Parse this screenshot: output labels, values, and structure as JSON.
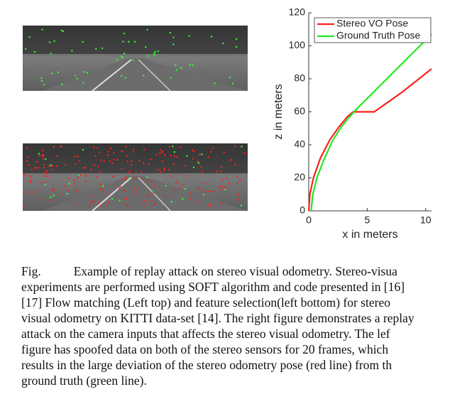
{
  "chart_data": {
    "type": "line",
    "xlabel": "x in meters",
    "ylabel": "z in meters",
    "xlim": [
      0,
      10.5
    ],
    "ylim": [
      0,
      120
    ],
    "xticks": [
      0,
      5,
      10
    ],
    "yticks": [
      0,
      20,
      40,
      60,
      80,
      100,
      120
    ],
    "legend": "top-left",
    "series": [
      {
        "name": "Stereo VO Pose",
        "color": "#ff1f1f",
        "x": [
          0,
          0.1,
          0.4,
          1,
          1.8,
          2.6,
          3.3,
          3.8,
          5.6,
          8,
          10.5
        ],
        "values": [
          0,
          10,
          20,
          32,
          43,
          51,
          57,
          60,
          60,
          72,
          86
        ]
      },
      {
        "name": "Ground Truth Pose",
        "color": "#22e622",
        "x": [
          0.2,
          0.35,
          0.7,
          1.3,
          2.0,
          2.8,
          3.5,
          4.0,
          10.5
        ],
        "values": [
          0,
          10,
          20,
          31,
          42,
          51,
          57,
          61,
          107
        ]
      }
    ]
  },
  "caption": {
    "label": "Fig.",
    "lines": [
      "Example of replay attack on stereo visual odometry. Stereo-visua",
      "experiments are performed using SOFT algorithm and code presented in [16]",
      "[17] Flow matching (Left top) and feature selection(left bottom) for stereo",
      "visual odometry on KITTI data-set [14]. The right figure demonstrates a replay",
      "attack on the camera inputs that affects the stereo visual odometry. The lef",
      "figure has spoofed data on both of the stereo sensors for 20 frames, which",
      "results in the large deviation of the stereo odometry pose (red line) from th",
      "ground truth (green line)."
    ]
  }
}
